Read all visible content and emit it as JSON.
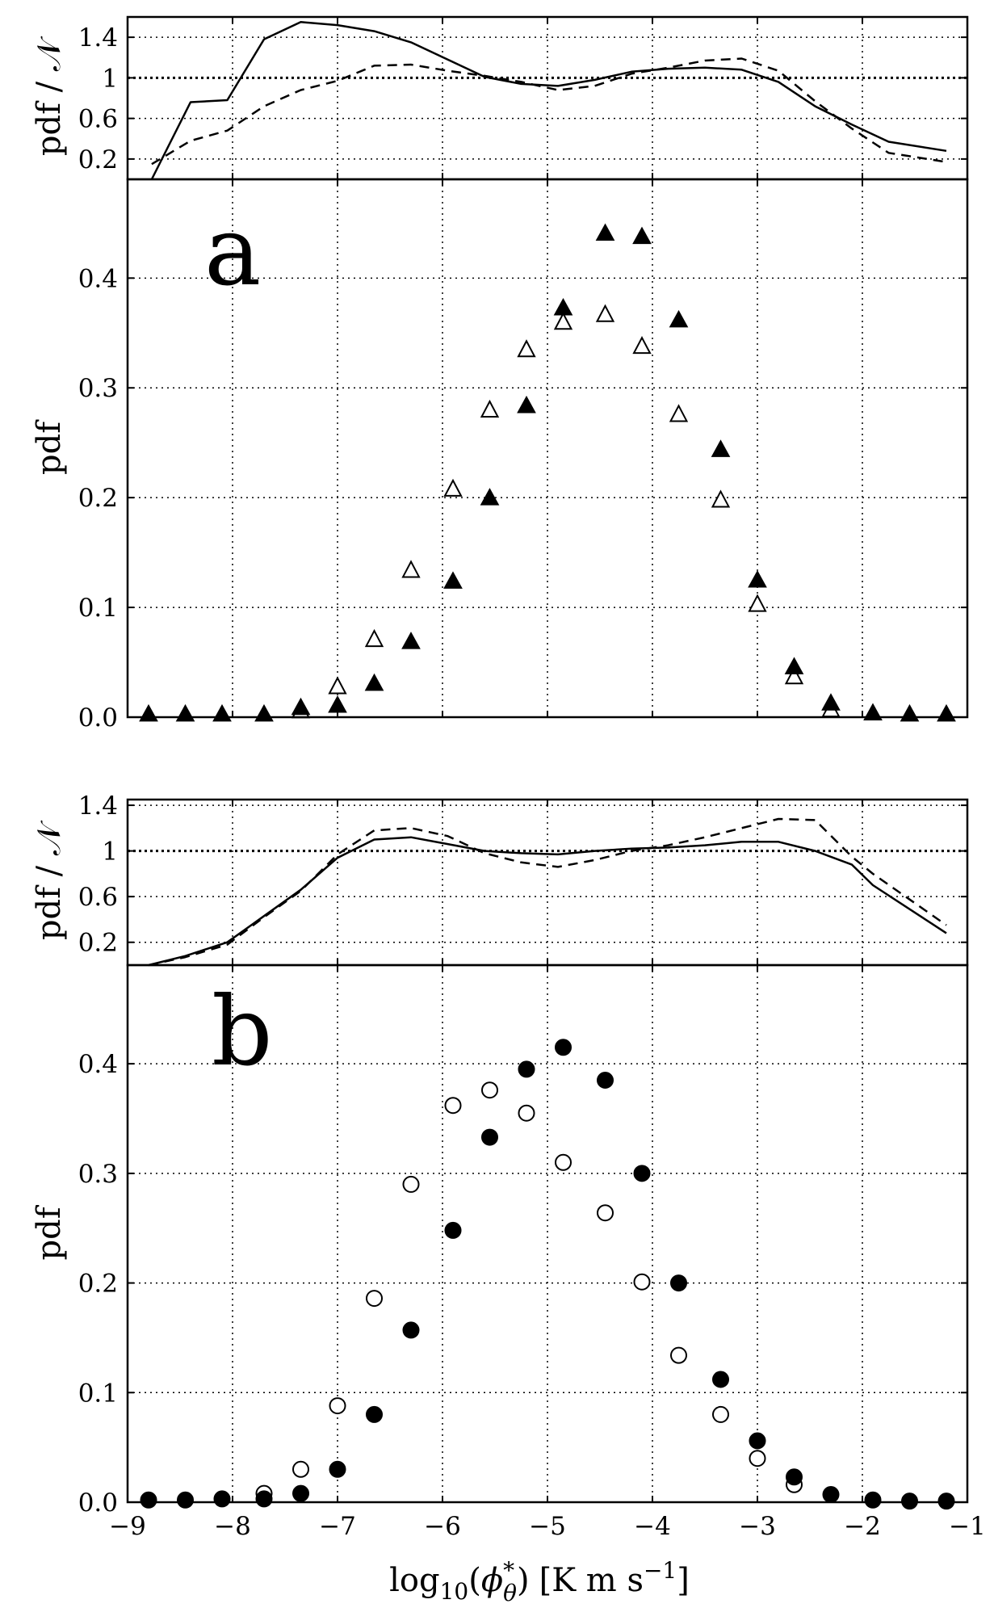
{
  "chart_data": [
    {
      "panel": "a",
      "type": "line",
      "ylabel": "pdf / 𝒩",
      "ylim": [
        0.0,
        1.6
      ],
      "yticks": [
        0.2,
        0.6,
        1.0,
        1.4
      ],
      "reference_y": 1.0,
      "x": [
        -8.77,
        -8.4,
        -8.05,
        -7.7,
        -7.35,
        -7.0,
        -6.65,
        -6.3,
        -5.95,
        -5.6,
        -5.25,
        -4.9,
        -4.55,
        -4.2,
        -3.85,
        -3.5,
        -3.15,
        -2.8,
        -2.45,
        -2.1,
        -1.75,
        -1.2
      ],
      "series": [
        {
          "name": "solid",
          "style": "solid",
          "values": [
            0.0,
            0.76,
            0.78,
            1.38,
            1.55,
            1.52,
            1.46,
            1.35,
            1.18,
            1.01,
            0.94,
            0.92,
            0.98,
            1.06,
            1.09,
            1.1,
            1.08,
            0.96,
            0.72,
            0.54,
            0.37,
            0.28
          ]
        },
        {
          "name": "dashed",
          "style": "dashed",
          "values": [
            0.15,
            0.38,
            0.48,
            0.72,
            0.88,
            0.97,
            1.12,
            1.13,
            1.07,
            1.02,
            0.96,
            0.88,
            0.92,
            1.04,
            1.1,
            1.17,
            1.19,
            1.07,
            0.77,
            0.5,
            0.26,
            0.17
          ]
        }
      ]
    },
    {
      "panel": "a",
      "letter": "a",
      "type": "scatter",
      "ylabel": "pdf",
      "ylim": [
        0.0,
        0.49
      ],
      "yticks": [
        0.0,
        0.1,
        0.2,
        0.3,
        0.4
      ],
      "yticklabels": [
        "0.0",
        "0.1",
        "0.2",
        "0.3",
        "0.4"
      ],
      "marker": "triangle",
      "x": [
        -8.8,
        -8.45,
        -8.1,
        -7.7,
        -7.35,
        -7.0,
        -6.65,
        -6.3,
        -5.9,
        -5.55,
        -5.2,
        -4.85,
        -4.45,
        -4.1,
        -3.75,
        -3.35,
        -3.0,
        -2.65,
        -2.3,
        -1.9,
        -1.55,
        -1.2
      ],
      "series": [
        {
          "name": "filled",
          "fill": "filled",
          "values": [
            0.002,
            0.002,
            0.002,
            0.002,
            0.008,
            0.01,
            0.03,
            0.068,
            0.123,
            0.199,
            0.283,
            0.372,
            0.44,
            0.437,
            0.361,
            0.243,
            0.124,
            0.045,
            0.012,
            0.003,
            0.002,
            0.002
          ]
        },
        {
          "name": "open",
          "fill": "open",
          "values": [
            null,
            null,
            null,
            null,
            0.005,
            0.027,
            0.07,
            0.133,
            0.207,
            0.279,
            0.334,
            0.359,
            0.366,
            0.337,
            0.275,
            0.197,
            0.102,
            0.036,
            0.006,
            null,
            null,
            null
          ]
        }
      ]
    },
    {
      "panel": "b",
      "type": "line",
      "ylabel": "pdf / 𝒩",
      "ylim": [
        0.0,
        1.45
      ],
      "yticks": [
        0.2,
        0.6,
        1.0,
        1.4
      ],
      "reference_y": 1.0,
      "x": [
        -8.8,
        -8.45,
        -8.05,
        -7.7,
        -7.35,
        -7.0,
        -6.65,
        -6.3,
        -5.95,
        -5.6,
        -5.25,
        -4.9,
        -4.55,
        -4.2,
        -3.85,
        -3.5,
        -3.15,
        -2.8,
        -2.45,
        -2.1,
        -1.9,
        -1.2
      ],
      "series": [
        {
          "name": "solid",
          "style": "solid",
          "values": [
            0.0,
            0.08,
            0.2,
            0.43,
            0.66,
            0.94,
            1.1,
            1.12,
            1.06,
            1.0,
            0.98,
            0.97,
            1.0,
            1.02,
            1.03,
            1.05,
            1.08,
            1.08,
            1.0,
            0.88,
            0.7,
            0.28
          ]
        },
        {
          "name": "dashed",
          "style": "dashed",
          "values": [
            0.0,
            0.07,
            0.18,
            0.42,
            0.65,
            0.97,
            1.18,
            1.2,
            1.13,
            0.98,
            0.9,
            0.86,
            0.92,
            1.0,
            1.05,
            1.12,
            1.2,
            1.28,
            1.27,
            0.95,
            0.8,
            0.35
          ]
        }
      ]
    },
    {
      "panel": "b",
      "letter": "b",
      "type": "scatter",
      "ylabel": "pdf",
      "xlabel_parts": {
        "prefix": "log",
        "subscript": "10",
        "paren_open": "(",
        "symbol": "ϕ",
        "superscript": "*",
        "symbol_sub": "θ",
        "paren_close": ")",
        "units": "[K m s",
        "units_exp": "−1",
        "units_close": "]"
      },
      "xlim": [
        -9,
        -1
      ],
      "xticks": [
        -9,
        -8,
        -7,
        -6,
        -5,
        -4,
        -3,
        -2,
        -1
      ],
      "xticklabels": [
        "−9",
        "−8",
        "−7",
        "−6",
        "−5",
        "−4",
        "−3",
        "−2",
        "−1"
      ],
      "ylim": [
        0.0,
        0.49
      ],
      "yticks": [
        0.0,
        0.1,
        0.2,
        0.3,
        0.4
      ],
      "yticklabels": [
        "0.0",
        "0.1",
        "0.2",
        "0.3",
        "0.4"
      ],
      "marker": "circle",
      "x": [
        -8.8,
        -8.45,
        -8.1,
        -7.7,
        -7.35,
        -7.0,
        -6.65,
        -6.3,
        -5.9,
        -5.55,
        -5.2,
        -4.85,
        -4.45,
        -4.1,
        -3.75,
        -3.35,
        -3.0,
        -2.65,
        -2.3,
        -1.9,
        -1.55,
        -1.2
      ],
      "series": [
        {
          "name": "filled",
          "fill": "filled",
          "values": [
            0.002,
            0.002,
            0.003,
            0.003,
            0.008,
            0.03,
            0.08,
            0.157,
            0.248,
            0.333,
            0.395,
            0.415,
            0.385,
            0.3,
            0.2,
            0.112,
            0.056,
            0.023,
            0.007,
            0.002,
            0.001,
            0.001
          ]
        },
        {
          "name": "open",
          "fill": "open",
          "values": [
            null,
            null,
            null,
            0.008,
            0.03,
            0.088,
            0.186,
            0.29,
            0.362,
            0.376,
            0.355,
            0.31,
            0.264,
            0.201,
            0.134,
            0.08,
            0.04,
            0.016,
            null,
            null,
            null,
            null
          ]
        }
      ]
    }
  ]
}
